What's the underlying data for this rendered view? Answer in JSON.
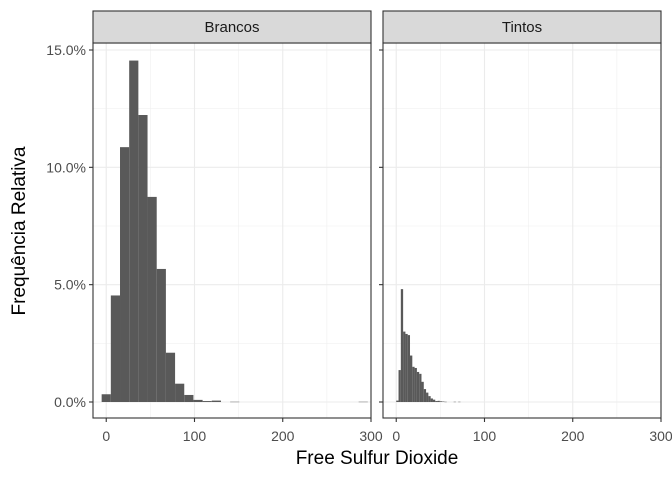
{
  "chart_data": {
    "type": "bar",
    "subtype": "faceted-histogram",
    "xlabel": "Free Sulfur Dioxide",
    "ylabel": "Frequência Relativa",
    "xlim": [
      -15,
      300
    ],
    "ylim": [
      0,
      0.15
    ],
    "x_ticks": [
      0,
      100,
      200,
      300
    ],
    "x_tick_labels": [
      "0",
      "100",
      "200",
      "300"
    ],
    "y_ticks": [
      0,
      0.05,
      0.1,
      0.15
    ],
    "y_tick_labels": [
      "0.0%",
      "5.0%",
      "10.0%",
      "15.0%"
    ],
    "grid": true,
    "bar_color": "#595959",
    "panels": [
      {
        "label": "Brancos",
        "bin_width": 10.4,
        "bins": [
          {
            "x0": -5.2,
            "x1": 5.2,
            "value": 0.0033
          },
          {
            "x0": 5.2,
            "x1": 15.6,
            "value": 0.0454
          },
          {
            "x0": 15.6,
            "x1": 26.0,
            "value": 0.1086
          },
          {
            "x0": 26.0,
            "x1": 36.4,
            "value": 0.1455
          },
          {
            "x0": 36.4,
            "x1": 46.8,
            "value": 0.1223
          },
          {
            "x0": 46.8,
            "x1": 57.2,
            "value": 0.0874
          },
          {
            "x0": 57.2,
            "x1": 67.6,
            "value": 0.0567
          },
          {
            "x0": 67.6,
            "x1": 78.0,
            "value": 0.021
          },
          {
            "x0": 78.0,
            "x1": 88.4,
            "value": 0.0078
          },
          {
            "x0": 88.4,
            "x1": 98.8,
            "value": 0.003
          },
          {
            "x0": 98.8,
            "x1": 109.2,
            "value": 0.0009
          },
          {
            "x0": 109.2,
            "x1": 119.6,
            "value": 0.0004
          },
          {
            "x0": 119.6,
            "x1": 130.0,
            "value": 0.0006
          },
          {
            "x0": 140.4,
            "x1": 150.8,
            "value": 0.0001
          },
          {
            "x0": 286.0,
            "x1": 296.4,
            "value": 0.0001
          }
        ]
      },
      {
        "label": "Tintos",
        "bin_width": 2.6,
        "bins": [
          {
            "x0": 0.0,
            "x1": 2.6,
            "value": 0.0006
          },
          {
            "x0": 2.6,
            "x1": 5.2,
            "value": 0.0136
          },
          {
            "x0": 5.2,
            "x1": 7.8,
            "value": 0.0481
          },
          {
            "x0": 7.8,
            "x1": 10.4,
            "value": 0.03
          },
          {
            "x0": 10.4,
            "x1": 13.0,
            "value": 0.029
          },
          {
            "x0": 13.0,
            "x1": 15.6,
            "value": 0.0285
          },
          {
            "x0": 15.6,
            "x1": 18.2,
            "value": 0.0198
          },
          {
            "x0": 18.2,
            "x1": 20.8,
            "value": 0.015
          },
          {
            "x0": 20.8,
            "x1": 23.4,
            "value": 0.0145
          },
          {
            "x0": 23.4,
            "x1": 26.0,
            "value": 0.0128
          },
          {
            "x0": 26.0,
            "x1": 28.6,
            "value": 0.012
          },
          {
            "x0": 28.6,
            "x1": 31.2,
            "value": 0.0086
          },
          {
            "x0": 31.2,
            "x1": 33.8,
            "value": 0.0055
          },
          {
            "x0": 33.8,
            "x1": 36.4,
            "value": 0.004
          },
          {
            "x0": 36.4,
            "x1": 39.0,
            "value": 0.0025
          },
          {
            "x0": 39.0,
            "x1": 41.6,
            "value": 0.0015
          },
          {
            "x0": 41.6,
            "x1": 44.2,
            "value": 0.001
          },
          {
            "x0": 44.2,
            "x1": 46.8,
            "value": 0.0004
          },
          {
            "x0": 46.8,
            "x1": 49.4,
            "value": 0.0005
          },
          {
            "x0": 49.4,
            "x1": 52.0,
            "value": 0.0003
          },
          {
            "x0": 52.0,
            "x1": 54.6,
            "value": 0.0002
          },
          {
            "x0": 54.6,
            "x1": 57.2,
            "value": 0.0001
          },
          {
            "x0": 65.0,
            "x1": 67.6,
            "value": 0.0001
          },
          {
            "x0": 70.2,
            "x1": 72.8,
            "value": 0.0001
          }
        ]
      }
    ]
  }
}
